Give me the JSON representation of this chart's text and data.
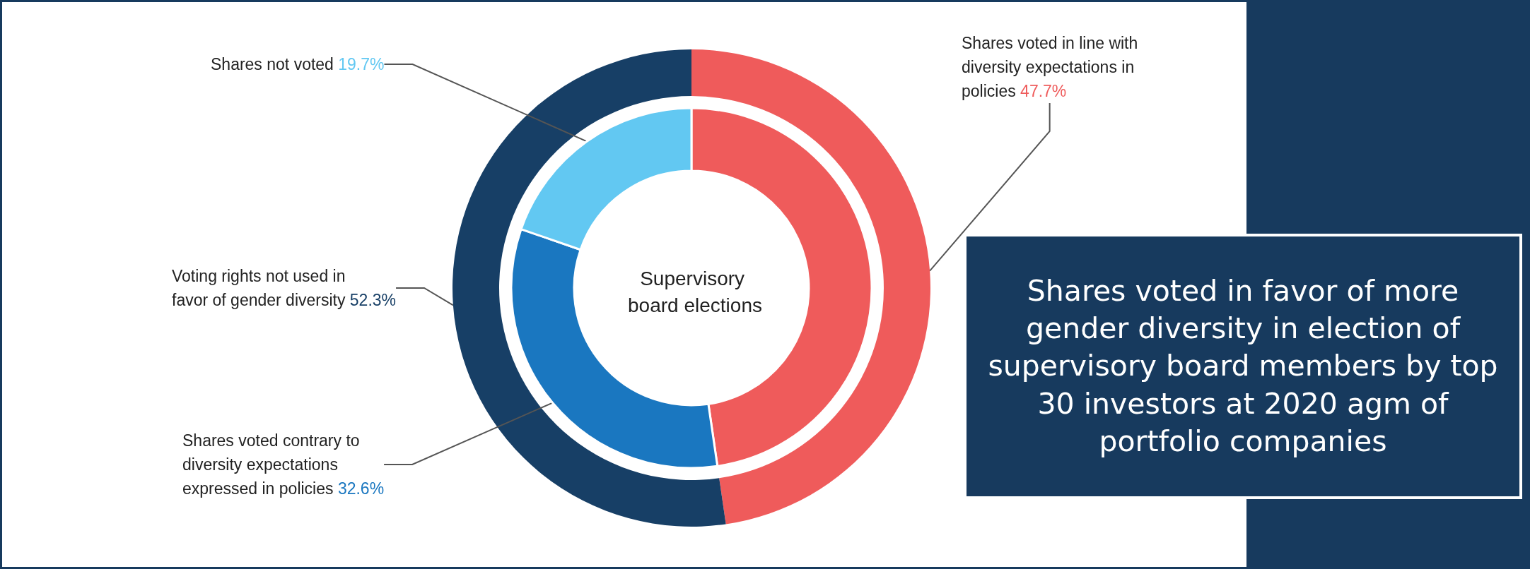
{
  "chart_data": [
    {
      "type": "donut",
      "legend": false,
      "categories": [
        "Shares voted in line with diversity expectations in policies",
        "Voting rights not used in favor of gender diversity"
      ],
      "values": [
        47.7,
        52.3
      ],
      "colors": [
        "#ef5b5b",
        "#173f66"
      ],
      "value_labels": [
        "47.7%",
        "52.3%"
      ],
      "annotations": [
        "Shares voted in favor of more gender diversity in election of supervisory board members by top 30 investors at 2020 agm of portfolio companies"
      ]
    },
    {
      "type": "donut",
      "legend": false,
      "title": "Supervisory board elections",
      "categories": [
        null,
        "Shares voted contrary to diversity expectations expressed in policies",
        "Shares not voted"
      ],
      "values": [
        47.7,
        32.6,
        19.7
      ],
      "colors": [
        "#ef5b5b",
        "#1a77c0",
        "#62c8f2"
      ],
      "value_labels": [
        null,
        "32.6%",
        "19.7%"
      ]
    }
  ]
}
